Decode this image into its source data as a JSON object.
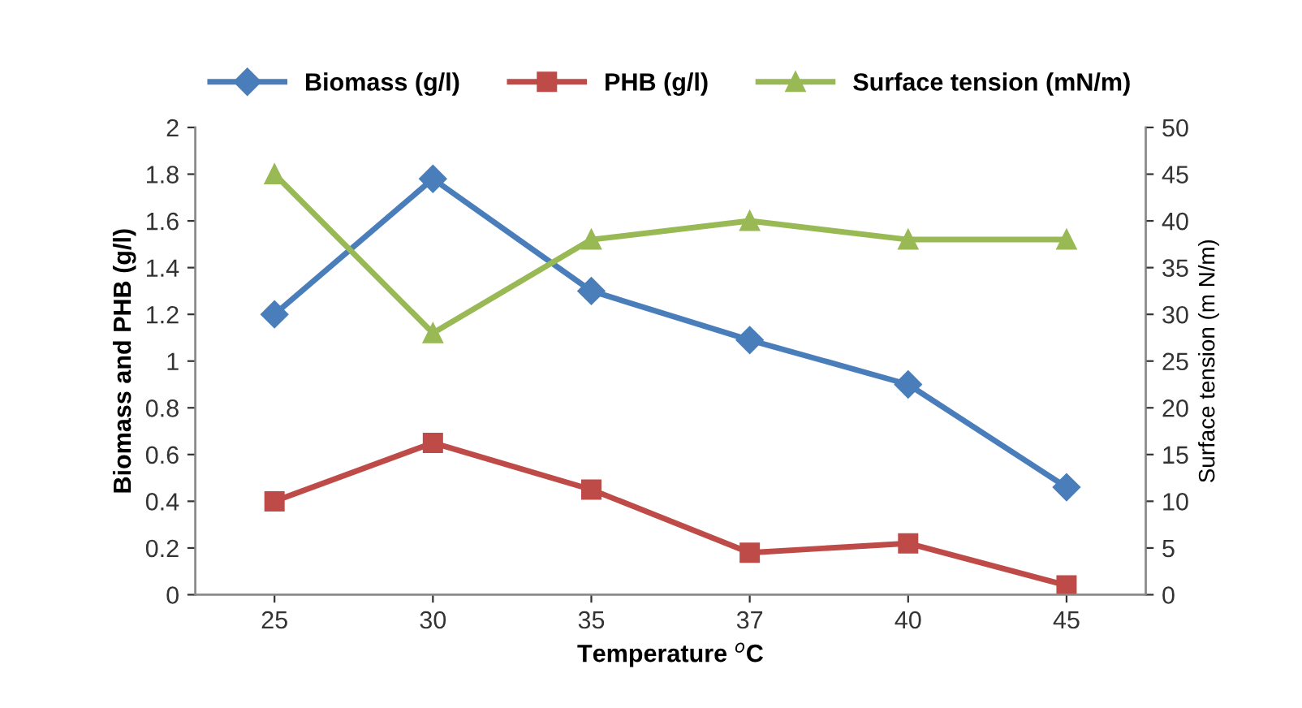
{
  "chart_data": {
    "type": "line",
    "xlabel": "Temperature $^{o}$C",
    "ylabel": "Biomass and PHB (g/l)",
    "y2label": "Surface tension (m N/m)",
    "categories": [
      "25",
      "30",
      "35",
      "37",
      "40",
      "45"
    ],
    "series": [
      {
        "name": "Biomass (g/l)",
        "color": "#4a7ebb",
        "marker": "diamond",
        "values": [
          1.2,
          1.78,
          1.3,
          1.09,
          0.9,
          0.46
        ]
      },
      {
        "name": "PHB (g/l)",
        "color": "#be4b48",
        "marker": "square",
        "values": [
          0.4,
          0.65,
          0.45,
          0.18,
          0.22,
          0.04
        ]
      },
      {
        "name": "Surface tension (mN/m)",
        "color": "#98b954",
        "marker": "triangle",
        "axis": "y2",
        "values": [
          45,
          28,
          38,
          40,
          38,
          38
        ]
      }
    ],
    "ylim": [
      0,
      2
    ],
    "yticks": [
      0,
      0.2,
      0.4,
      0.6,
      0.8,
      1,
      1.2,
      1.4,
      1.6,
      1.8,
      2
    ],
    "y2lim": [
      0,
      50
    ],
    "y2ticks": [
      0,
      5,
      10,
      15,
      20,
      25,
      30,
      35,
      40,
      45,
      50
    ],
    "grid": false,
    "legend": "top",
    "line_style": "solid"
  }
}
